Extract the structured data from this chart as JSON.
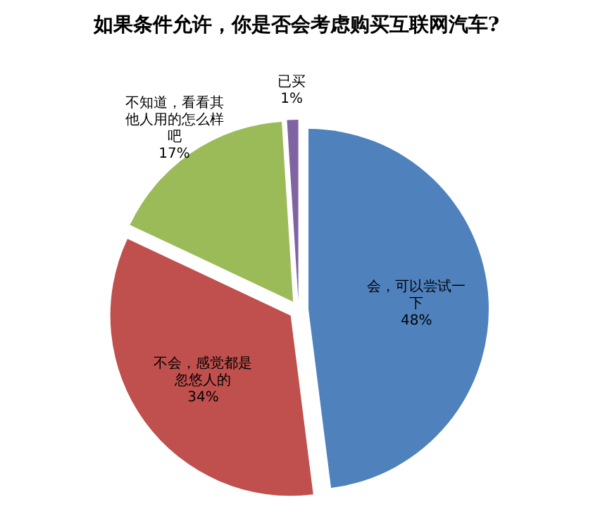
{
  "chart_data": {
    "type": "pie",
    "title": "如果条件允许，你是否会考虑购买互联网汽车?",
    "categories": [
      "会，可以尝试一下",
      "不会，感觉都是忽悠人的",
      "不知道，看看其他人用的怎么样吧",
      "已买"
    ],
    "values": [
      48,
      34,
      17,
      1
    ],
    "value_labels": [
      "48%",
      "34%",
      "17%",
      "1%"
    ],
    "colors": [
      "#4f81bd",
      "#c0504d",
      "#9bbb59",
      "#8064a2"
    ],
    "legend": false
  }
}
